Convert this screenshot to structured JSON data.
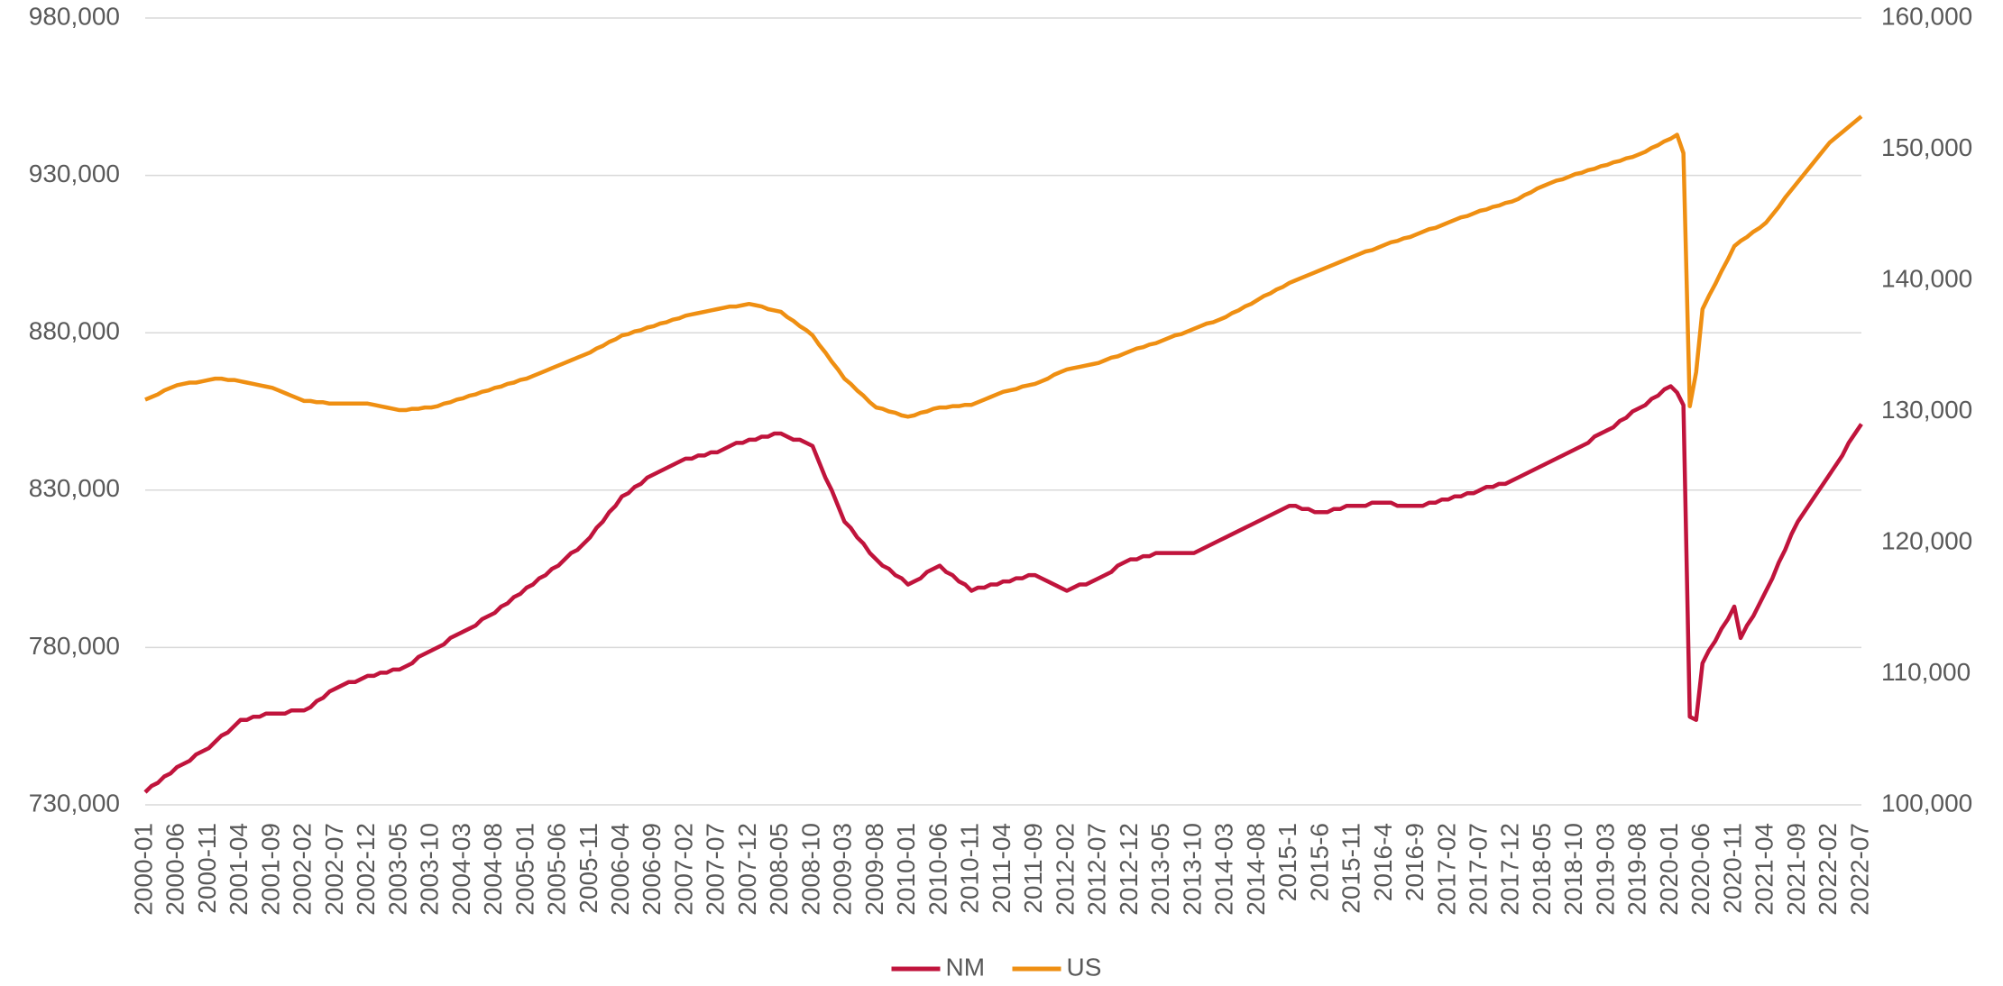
{
  "chart_data": {
    "type": "line",
    "legend": "bottom",
    "grid": true,
    "categories": [
      "2000-01",
      null,
      null,
      null,
      null,
      "2000-06",
      null,
      null,
      null,
      null,
      "2000-11",
      null,
      null,
      null,
      null,
      "2001-04",
      null,
      null,
      null,
      null,
      "2001-09",
      null,
      null,
      null,
      null,
      "2002-02",
      null,
      null,
      null,
      null,
      "2002-07",
      null,
      null,
      null,
      null,
      "2002-12",
      null,
      null,
      null,
      null,
      "2003-05",
      null,
      null,
      null,
      null,
      "2003-10",
      null,
      null,
      null,
      null,
      "2004-03",
      null,
      null,
      null,
      null,
      "2004-08",
      null,
      null,
      null,
      null,
      "2005-01",
      null,
      null,
      null,
      null,
      "2005-06",
      null,
      null,
      null,
      null,
      "2005-11",
      null,
      null,
      null,
      null,
      "2006-04",
      null,
      null,
      null,
      null,
      "2006-09",
      null,
      null,
      null,
      null,
      "2007-02",
      null,
      null,
      null,
      null,
      "2007-07",
      null,
      null,
      null,
      null,
      "2007-12",
      null,
      null,
      null,
      null,
      "2008-05",
      null,
      null,
      null,
      null,
      "2008-10",
      null,
      null,
      null,
      null,
      "2009-03",
      null,
      null,
      null,
      null,
      "2009-08",
      null,
      null,
      null,
      null,
      "2010-01",
      null,
      null,
      null,
      null,
      "2010-06",
      null,
      null,
      null,
      null,
      "2010-11",
      null,
      null,
      null,
      null,
      "2011-04",
      null,
      null,
      null,
      null,
      "2011-09",
      null,
      null,
      null,
      null,
      "2012-02",
      null,
      null,
      null,
      null,
      "2012-07",
      null,
      null,
      null,
      null,
      "2012-12",
      null,
      null,
      null,
      null,
      "2013-05",
      null,
      null,
      null,
      null,
      "2013-10",
      null,
      null,
      null,
      null,
      "2014-03",
      null,
      null,
      null,
      null,
      "2014-08",
      null,
      null,
      null,
      null,
      "2015-1",
      null,
      null,
      null,
      null,
      "2015-6",
      null,
      null,
      null,
      null,
      "2015-11",
      null,
      null,
      null,
      null,
      "2016-4",
      null,
      null,
      null,
      null,
      "2016-9",
      null,
      null,
      null,
      null,
      "2017-02",
      null,
      null,
      null,
      null,
      "2017-07",
      null,
      null,
      null,
      null,
      "2017-12",
      null,
      null,
      null,
      null,
      "2018-05",
      null,
      null,
      null,
      null,
      "2018-10",
      null,
      null,
      null,
      null,
      "2019-03",
      null,
      null,
      null,
      null,
      "2019-08",
      null,
      null,
      null,
      null,
      "2020-01",
      null,
      null,
      null,
      null,
      "2020-06",
      null,
      null,
      null,
      null,
      "2020-11",
      null,
      null,
      null,
      null,
      "2021-04",
      null,
      null,
      null,
      null,
      "2021-09",
      null,
      null,
      null,
      null,
      "2022-02",
      null,
      null,
      null,
      null,
      "2022-07"
    ],
    "series": [
      {
        "name": "NM",
        "color": "#c0143c",
        "values": [
          734000,
          736000,
          737000,
          739000,
          740000,
          742000,
          743000,
          744000,
          746000,
          747000,
          748000,
          750000,
          752000,
          753000,
          755000,
          757000,
          757000,
          758000,
          758000,
          759000,
          759000,
          759000,
          759000,
          760000,
          760000,
          760000,
          761000,
          763000,
          764000,
          766000,
          767000,
          768000,
          769000,
          769000,
          770000,
          771000,
          771000,
          772000,
          772000,
          773000,
          773000,
          774000,
          775000,
          777000,
          778000,
          779000,
          780000,
          781000,
          783000,
          784000,
          785000,
          786000,
          787000,
          789000,
          790000,
          791000,
          793000,
          794000,
          796000,
          797000,
          799000,
          800000,
          802000,
          803000,
          805000,
          806000,
          808000,
          810000,
          811000,
          813000,
          815000,
          818000,
          820000,
          823000,
          825000,
          828000,
          829000,
          831000,
          832000,
          834000,
          835000,
          836000,
          837000,
          838000,
          839000,
          840000,
          840000,
          841000,
          841000,
          842000,
          842000,
          843000,
          844000,
          845000,
          845000,
          846000,
          846000,
          847000,
          847000,
          848000,
          848000,
          847000,
          846000,
          846000,
          845000,
          844000,
          839000,
          834000,
          830000,
          825000,
          820000,
          818000,
          815000,
          813000,
          810000,
          808000,
          806000,
          805000,
          803000,
          802000,
          800000,
          801000,
          802000,
          804000,
          805000,
          806000,
          804000,
          803000,
          801000,
          800000,
          798000,
          799000,
          799000,
          800000,
          800000,
          801000,
          801000,
          802000,
          802000,
          803000,
          803000,
          802000,
          801000,
          800000,
          799000,
          798000,
          799000,
          800000,
          800000,
          801000,
          802000,
          803000,
          804000,
          806000,
          807000,
          808000,
          808000,
          809000,
          809000,
          810000,
          810000,
          810000,
          810000,
          810000,
          810000,
          810000,
          811000,
          812000,
          813000,
          814000,
          815000,
          816000,
          817000,
          818000,
          819000,
          820000,
          821000,
          822000,
          823000,
          824000,
          825000,
          825000,
          824000,
          824000,
          823000,
          823000,
          823000,
          824000,
          824000,
          825000,
          825000,
          825000,
          825000,
          826000,
          826000,
          826000,
          826000,
          825000,
          825000,
          825000,
          825000,
          825000,
          826000,
          826000,
          827000,
          827000,
          828000,
          828000,
          829000,
          829000,
          830000,
          831000,
          831000,
          832000,
          832000,
          833000,
          834000,
          835000,
          836000,
          837000,
          838000,
          839000,
          840000,
          841000,
          842000,
          843000,
          844000,
          845000,
          847000,
          848000,
          849000,
          850000,
          852000,
          853000,
          855000,
          856000,
          857000,
          859000,
          860000,
          862000,
          863000,
          861000,
          857000,
          758000,
          757000,
          775000,
          779000,
          782000,
          786000,
          789000,
          793000,
          783000,
          787000,
          790000,
          794000,
          798000,
          802000,
          807000,
          811000,
          816000,
          820000,
          823000,
          826000,
          829000,
          832000,
          835000,
          838000,
          841000,
          845000,
          848000,
          851000
        ]
      },
      {
        "name": "US",
        "color": "#ef8f12",
        "axis": "y2",
        "values": [
          130900,
          131100,
          131300,
          131600,
          131800,
          132000,
          132100,
          132200,
          132200,
          132300,
          132400,
          132500,
          132500,
          132400,
          132400,
          132300,
          132200,
          132100,
          132000,
          131900,
          131800,
          131600,
          131400,
          131200,
          131000,
          130800,
          130800,
          130700,
          130700,
          130600,
          130600,
          130600,
          130600,
          130600,
          130600,
          130600,
          130500,
          130400,
          130300,
          130200,
          130100,
          130100,
          130200,
          130200,
          130300,
          130300,
          130400,
          130600,
          130700,
          130900,
          131000,
          131200,
          131300,
          131500,
          131600,
          131800,
          131900,
          132100,
          132200,
          132400,
          132500,
          132700,
          132900,
          133100,
          133300,
          133500,
          133700,
          133900,
          134100,
          134300,
          134500,
          134800,
          135000,
          135300,
          135500,
          135800,
          135900,
          136100,
          136200,
          136400,
          136500,
          136700,
          136800,
          137000,
          137100,
          137300,
          137400,
          137500,
          137600,
          137700,
          137800,
          137900,
          138000,
          138000,
          138100,
          138200,
          138100,
          138000,
          137800,
          137700,
          137600,
          137200,
          136900,
          136500,
          136200,
          135800,
          135100,
          134500,
          133800,
          133200,
          132500,
          132100,
          131600,
          131200,
          130700,
          130300,
          130200,
          130000,
          129900,
          129700,
          129600,
          129700,
          129900,
          130000,
          130200,
          130300,
          130300,
          130400,
          130400,
          130500,
          130500,
          130700,
          130900,
          131100,
          131300,
          131500,
          131600,
          131700,
          131900,
          132000,
          132100,
          132300,
          132500,
          132800,
          133000,
          133200,
          133300,
          133400,
          133500,
          133600,
          133700,
          133900,
          134100,
          134200,
          134400,
          134600,
          134800,
          134900,
          135100,
          135200,
          135400,
          135600,
          135800,
          135900,
          136100,
          136300,
          136500,
          136700,
          136800,
          137000,
          137200,
          137500,
          137700,
          138000,
          138200,
          138500,
          138800,
          139000,
          139300,
          139500,
          139800,
          140000,
          140200,
          140400,
          140600,
          140800,
          141000,
          141200,
          141400,
          141600,
          141800,
          142000,
          142200,
          142300,
          142500,
          142700,
          142900,
          143000,
          143200,
          143300,
          143500,
          143700,
          143900,
          144000,
          144200,
          144400,
          144600,
          144800,
          144900,
          145100,
          145300,
          145400,
          145600,
          145700,
          145900,
          146000,
          146200,
          146500,
          146700,
          147000,
          147200,
          147400,
          147600,
          147700,
          147900,
          148100,
          148200,
          148400,
          148500,
          148700,
          148800,
          149000,
          149100,
          149300,
          149400,
          149600,
          149800,
          150100,
          150300,
          150600,
          150800,
          151100,
          149700,
          130400,
          133000,
          137800,
          138800,
          139700,
          140700,
          141600,
          142600,
          143000,
          143300,
          143700,
          144000,
          144400,
          145000,
          145600,
          146300,
          146900,
          147500,
          148100,
          148700,
          149300,
          149900,
          150500,
          150900,
          151300,
          151700,
          152100,
          152500
        ]
      }
    ],
    "ylim": [
      730000,
      980000
    ],
    "yticks": [
      {
        "value": 730000,
        "label": "730,000"
      },
      {
        "value": 780000,
        "label": "780,000"
      },
      {
        "value": 830000,
        "label": "830,000"
      },
      {
        "value": 880000,
        "label": "880,000"
      },
      {
        "value": 930000,
        "label": "930,000"
      },
      {
        "value": 980000,
        "label": "980,000"
      }
    ],
    "y2lim": [
      100000,
      160000
    ],
    "y2ticks": [
      {
        "value": 100000,
        "label": "100,000"
      },
      {
        "value": 110000,
        "label": "110,000"
      },
      {
        "value": 120000,
        "label": "120,000"
      },
      {
        "value": 130000,
        "label": "130,000"
      },
      {
        "value": 140000,
        "label": "140,000"
      },
      {
        "value": 150000,
        "label": "150,000"
      },
      {
        "value": 160000,
        "label": "160,000"
      }
    ]
  }
}
